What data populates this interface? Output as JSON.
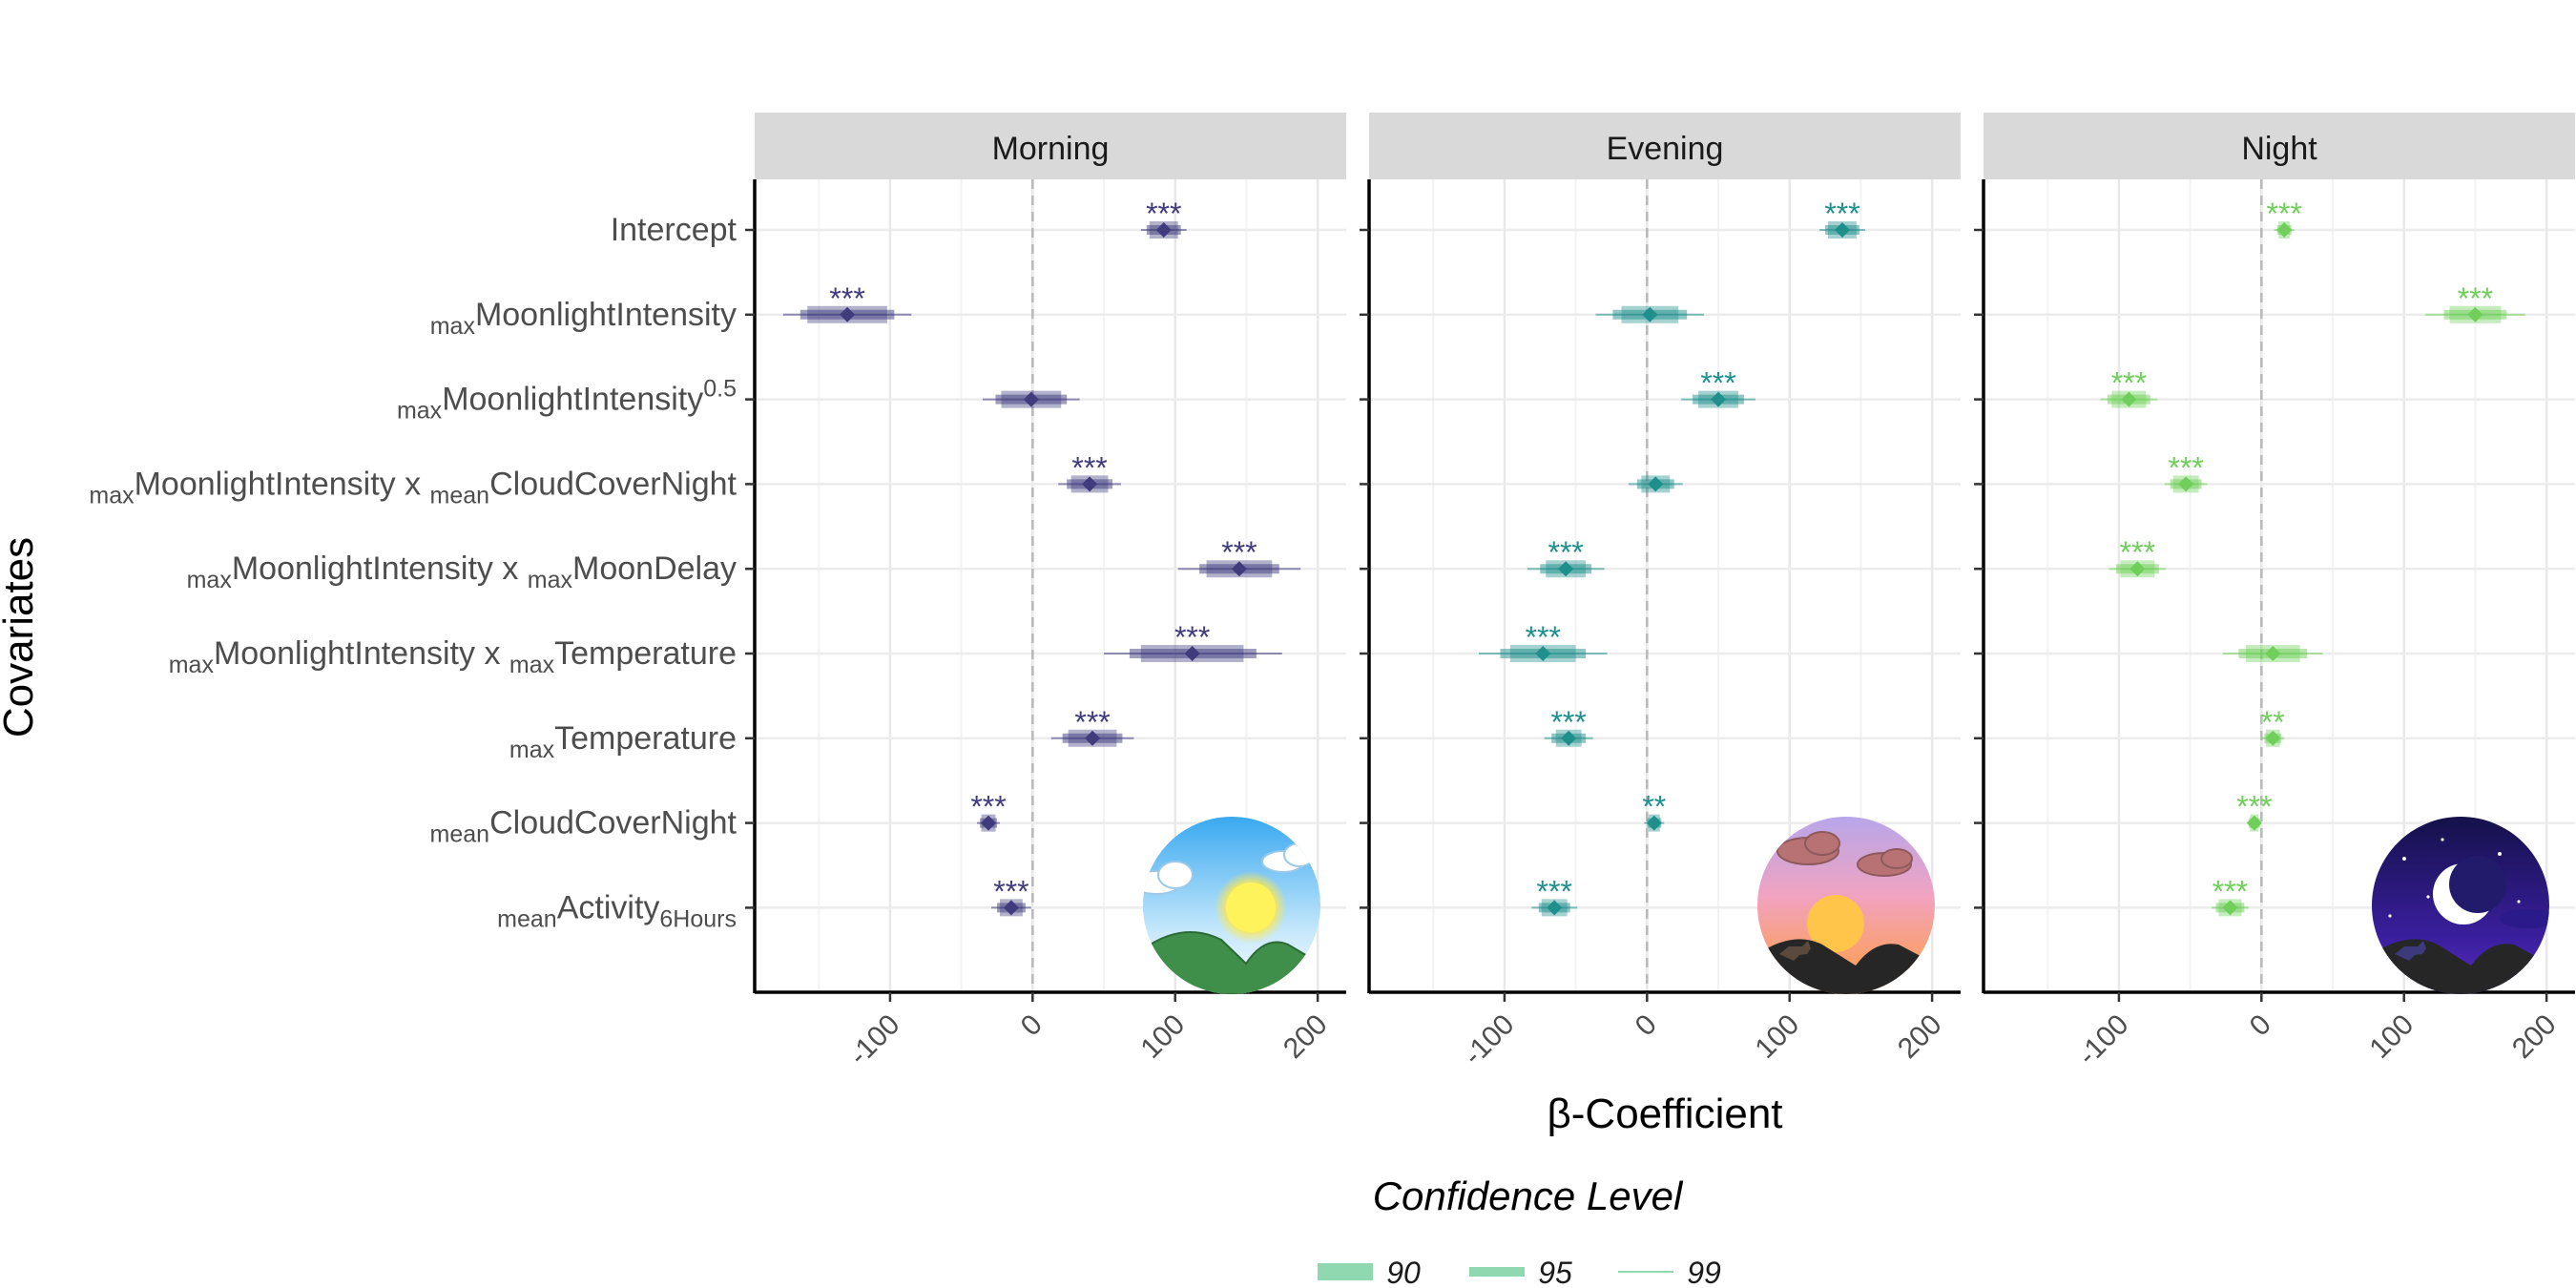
{
  "chart_data": {
    "type": "forest",
    "xlabel": "β-Coefficient",
    "ylabel": "Covariates",
    "xlim": [
      -195,
      220
    ],
    "xticks": [
      -100,
      0,
      100,
      200
    ],
    "x_tick_labels": [
      "-100",
      "0",
      "100",
      "200"
    ],
    "grid": true,
    "reference_line_x": 0,
    "covariates": [
      {
        "pre": "",
        "main": "Intercept",
        "sup": "",
        "mid": "",
        "main2": "",
        "sub2": ""
      },
      {
        "pre": "max",
        "main": "MoonlightIntensity",
        "sup": "",
        "mid": "",
        "main2": "",
        "sub2": ""
      },
      {
        "pre": "max",
        "main": "MoonlightIntensity",
        "sup": "0.5",
        "mid": "",
        "main2": "",
        "sub2": ""
      },
      {
        "pre": "max",
        "main": "MoonlightIntensity x ",
        "sup": "",
        "mid": "mean",
        "main2": "CloudCoverNight",
        "sub2": ""
      },
      {
        "pre": "max",
        "main": "MoonlightIntensity x ",
        "sup": "",
        "mid": "max",
        "main2": "MoonDelay",
        "sub2": ""
      },
      {
        "pre": "max",
        "main": "MoonlightIntensity x ",
        "sup": "",
        "mid": "max",
        "main2": "Temperature",
        "sub2": ""
      },
      {
        "pre": "max",
        "main": "Temperature",
        "sup": "",
        "mid": "",
        "main2": "",
        "sub2": ""
      },
      {
        "pre": "mean",
        "main": "CloudCoverNight",
        "sup": "",
        "mid": "",
        "main2": "",
        "sub2": ""
      },
      {
        "pre": "mean",
        "main": "Activity",
        "sup": "",
        "mid": "",
        "main2": "",
        "sub2": "6Hours"
      }
    ],
    "panels": [
      {
        "name": "Morning",
        "color": "#3f3b7d",
        "scene": "sun-scene",
        "estimates": [
          {
            "est": 92,
            "ci90": [
              82,
              102
            ],
            "ci95": [
              80,
              104
            ],
            "ci99": [
              76,
              108
            ],
            "sig": "***"
          },
          {
            "est": -130,
            "ci90": [
              -158,
              -102
            ],
            "ci95": [
              -163,
              -97
            ],
            "ci99": [
              -175,
              -85
            ],
            "sig": "***"
          },
          {
            "est": -1,
            "ci90": [
              -22,
              20
            ],
            "ci95": [
              -26,
              24
            ],
            "ci99": [
              -35,
              33
            ],
            "sig": ""
          },
          {
            "est": 40,
            "ci90": [
              27,
              53
            ],
            "ci95": [
              24,
              56
            ],
            "ci99": [
              18,
              62
            ],
            "sig": "***"
          },
          {
            "est": 145,
            "ci90": [
              122,
              168
            ],
            "ci95": [
              117,
              173
            ],
            "ci99": [
              102,
              188
            ],
            "sig": "***"
          },
          {
            "est": 112,
            "ci90": [
              76,
              148
            ],
            "ci95": [
              68,
              157
            ],
            "ci99": [
              50,
              175
            ],
            "sig": "***"
          },
          {
            "est": 42,
            "ci90": [
              25,
              59
            ],
            "ci95": [
              21,
              63
            ],
            "ci99": [
              13,
              71
            ],
            "sig": "***"
          },
          {
            "est": -31,
            "ci90": [
              -36,
              -26
            ],
            "ci95": [
              -37,
              -25
            ],
            "ci99": [
              -39,
              -23
            ],
            "sig": "***"
          },
          {
            "est": -15,
            "ci90": [
              -23,
              -7
            ],
            "ci95": [
              -25,
              -5
            ],
            "ci99": [
              -29,
              -1
            ],
            "sig": "***"
          }
        ]
      },
      {
        "name": "Evening",
        "color": "#1f8f8c",
        "scene": "sunset-scene",
        "estimates": [
          {
            "est": 137,
            "ci90": [
              127,
              147
            ],
            "ci95": [
              125,
              149
            ],
            "ci99": [
              121,
              153
            ],
            "sig": "***"
          },
          {
            "est": 2,
            "ci90": [
              -18,
              22
            ],
            "ci95": [
              -24,
              28
            ],
            "ci99": [
              -36,
              40
            ],
            "sig": ""
          },
          {
            "est": 50,
            "ci90": [
              36,
              64
            ],
            "ci95": [
              32,
              68
            ],
            "ci99": [
              24,
              76
            ],
            "sig": "***"
          },
          {
            "est": 6,
            "ci90": [
              -4,
              16
            ],
            "ci95": [
              -7,
              19
            ],
            "ci99": [
              -13,
              25
            ],
            "sig": ""
          },
          {
            "est": -57,
            "ci90": [
              -71,
              -43
            ],
            "ci95": [
              -75,
              -39
            ],
            "ci99": [
              -84,
              -30
            ],
            "sig": "***"
          },
          {
            "est": -73,
            "ci90": [
              -96,
              -50
            ],
            "ci95": [
              -103,
              -43
            ],
            "ci99": [
              -118,
              -28
            ],
            "sig": "***"
          },
          {
            "est": -55,
            "ci90": [
              -64,
              -46
            ],
            "ci95": [
              -67,
              -43
            ],
            "ci99": [
              -72,
              -38
            ],
            "sig": "***"
          },
          {
            "est": 5,
            "ci90": [
              1,
              9
            ],
            "ci95": [
              0,
              10
            ],
            "ci99": [
              -2,
              12
            ],
            "sig": "**"
          },
          {
            "est": -65,
            "ci90": [
              -74,
              -56
            ],
            "ci95": [
              -76,
              -54
            ],
            "ci99": [
              -81,
              -49
            ],
            "sig": "***"
          }
        ]
      },
      {
        "name": "Night",
        "color": "#6fcf5a",
        "scene": "night-scene",
        "estimates": [
          {
            "est": 16,
            "ci90": [
              12,
              20
            ],
            "ci95": [
              11,
              21
            ],
            "ci99": [
              9,
              23
            ],
            "sig": "***"
          },
          {
            "est": 150,
            "ci90": [
              132,
              168
            ],
            "ci95": [
              128,
              172
            ],
            "ci99": [
              115,
              185
            ],
            "sig": "***"
          },
          {
            "est": -93,
            "ci90": [
              -105,
              -81
            ],
            "ci95": [
              -108,
              -78
            ],
            "ci99": [
              -113,
              -73
            ],
            "sig": "***"
          },
          {
            "est": -53,
            "ci90": [
              -62,
              -44
            ],
            "ci95": [
              -64,
              -42
            ],
            "ci99": [
              -68,
              -38
            ],
            "sig": "***"
          },
          {
            "est": -87,
            "ci90": [
              -99,
              -75
            ],
            "ci95": [
              -102,
              -72
            ],
            "ci99": [
              -107,
              -67
            ],
            "sig": "***"
          },
          {
            "est": 8,
            "ci90": [
              -11,
              27
            ],
            "ci95": [
              -16,
              32
            ],
            "ci99": [
              -27,
              43
            ],
            "sig": ""
          },
          {
            "est": 8,
            "ci90": [
              3,
              13
            ],
            "ci95": [
              2,
              14
            ],
            "ci99": [
              0,
              16
            ],
            "sig": "**"
          },
          {
            "est": -5,
            "ci90": [
              -8,
              -2
            ],
            "ci95": [
              -9,
              -1
            ],
            "ci99": [
              -10,
              0
            ],
            "sig": "***"
          },
          {
            "est": -22,
            "ci90": [
              -30,
              -14
            ],
            "ci95": [
              -32,
              -12
            ],
            "ci99": [
              -35,
              -9
            ],
            "sig": "***"
          }
        ]
      }
    ],
    "legend": {
      "title": "Confidence Level",
      "position": "bottom",
      "color": "#8fd8b0",
      "items": [
        "90",
        "95",
        "99"
      ]
    }
  }
}
